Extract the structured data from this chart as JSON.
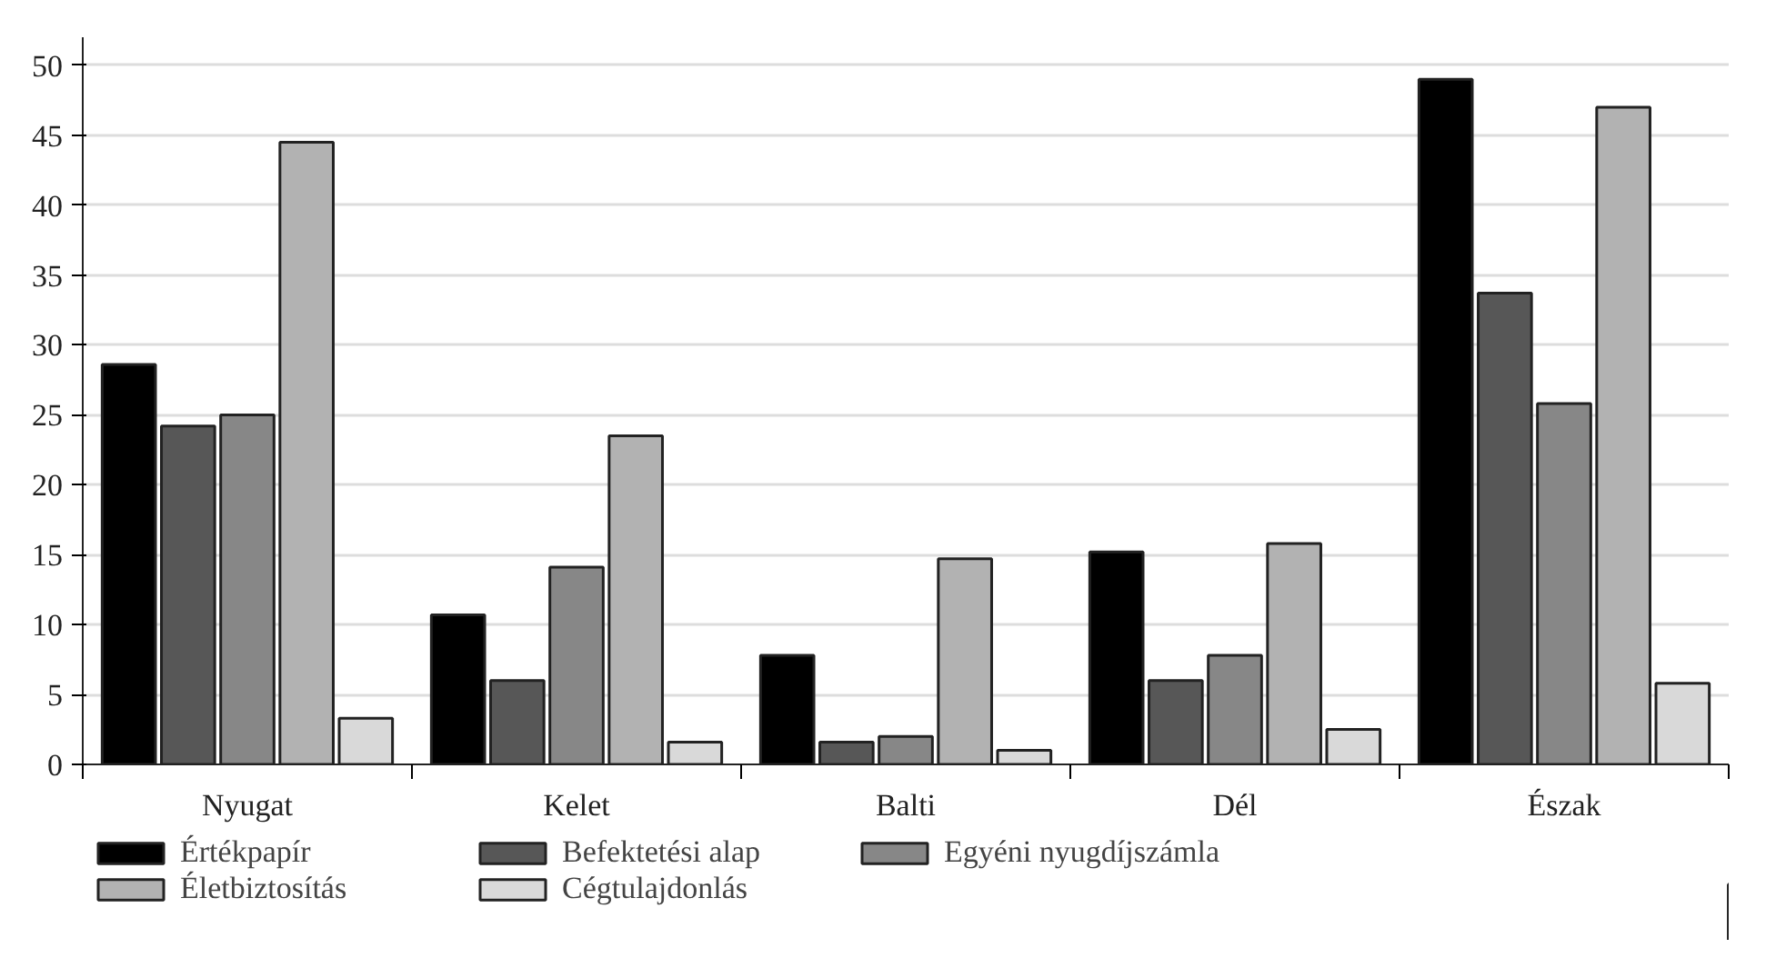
{
  "chart_data": {
    "type": "bar",
    "categories": [
      "Nyugat",
      "Kelet",
      "Balti",
      "Dél",
      "Észak"
    ],
    "series": [
      {
        "name": "Értékpapír",
        "color": "#000000",
        "values": [
          28.6,
          10.7,
          7.8,
          15.2,
          49.0
        ]
      },
      {
        "name": "Befektetési alap",
        "color": "#575757",
        "values": [
          24.2,
          6.0,
          1.6,
          6.0,
          33.7
        ]
      },
      {
        "name": "Egyéni nyugdíjszámla",
        "color": "#878787",
        "values": [
          25.0,
          14.1,
          2.0,
          7.8,
          25.8
        ]
      },
      {
        "name": "Életbiztosítás",
        "color": "#b2b2b2",
        "values": [
          44.5,
          23.5,
          14.7,
          15.8,
          47.0
        ]
      },
      {
        "name": "Cégtulajdonlás",
        "color": "#d9d9d9",
        "values": [
          3.3,
          1.6,
          1.0,
          2.5,
          5.8
        ]
      }
    ],
    "ylim": [
      0,
      52
    ],
    "yticks": [
      0,
      5,
      10,
      15,
      20,
      25,
      30,
      35,
      40,
      45,
      50
    ],
    "grid": "y",
    "legend": "bottom"
  }
}
